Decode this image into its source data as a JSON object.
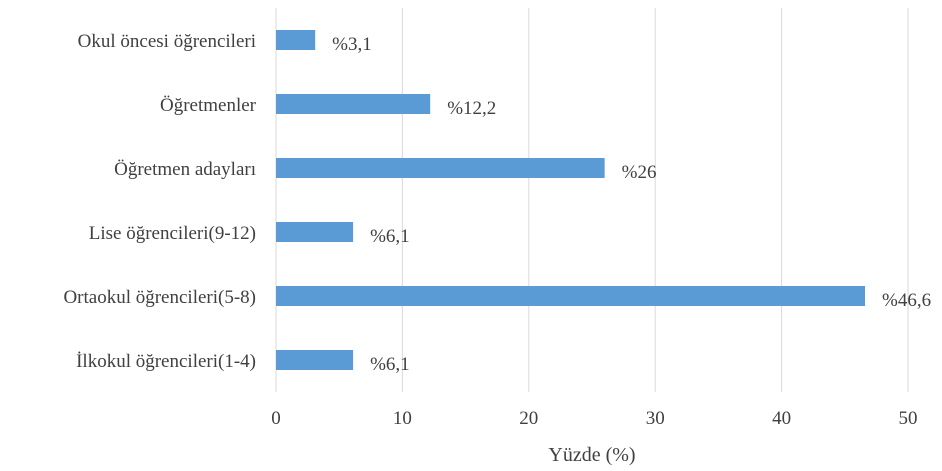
{
  "chart_data": {
    "type": "bar",
    "orientation": "horizontal",
    "categories": [
      "Okul öncesi öğrencileri",
      "Öğretmenler",
      "Öğretmen adayları",
      "Lise öğrencileri(9-12)",
      "Ortaokul öğrencileri(5-8)",
      "İlkokul öğrencileri(1-4)"
    ],
    "values": [
      3.1,
      12.2,
      26,
      6.1,
      46.6,
      6.1
    ],
    "value_labels": [
      "%3,1",
      "%12,2",
      "%26",
      "%6,1",
      "%46,6",
      "%6,1"
    ],
    "xlabel": "Yüzde (%)",
    "ylabel": "",
    "title": "",
    "xlim": [
      0,
      50
    ],
    "xticks": [
      0,
      10,
      20,
      30,
      40,
      50
    ],
    "grid": "vertical",
    "bar_color": "#5b9bd5",
    "grid_color": "#d9d9d9",
    "text_color": "#404040"
  }
}
